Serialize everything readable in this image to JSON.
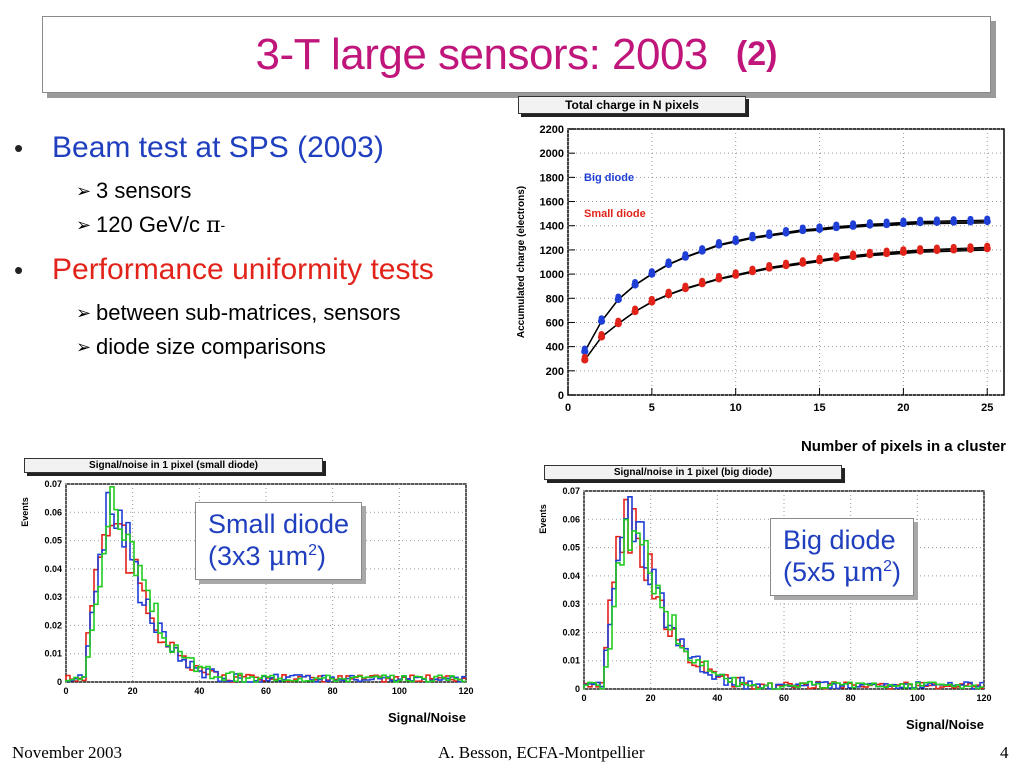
{
  "title": {
    "main": "3-T large sensors: 2003",
    "suffix": "(2)"
  },
  "bullets": [
    {
      "text": "Beam test at SPS (2003)",
      "color": "blue",
      "sub": [
        {
          "text": "3 sensors"
        },
        {
          "text": "120 GeV/c ",
          "sym": "π",
          "sup": "-"
        }
      ]
    },
    {
      "text": "Performance uniformity tests",
      "color": "red",
      "sub": [
        {
          "text": "between sub-matrices, sensors"
        },
        {
          "text": "diode size comparisons"
        }
      ]
    }
  ],
  "captions": {
    "small": {
      "line1": "Small diode",
      "line2_pre": "(3x3 ",
      "mu": "μ",
      "m": "m",
      "sup": "2",
      "close": ")"
    },
    "big": {
      "line1": "Big diode",
      "line2_pre": "(5x5 ",
      "mu": "μ",
      "m": "m",
      "sup": "2",
      "close": ")"
    }
  },
  "footer": {
    "left": "November 2003",
    "center": "A. Besson, ECFA-Montpellier",
    "page": "4"
  },
  "chart_data": [
    {
      "type": "line",
      "title": "Total charge in N pixels",
      "xlabel": "Number of pixels in a cluster",
      "ylabel": "Accumulated charge (electrons)",
      "xlim": [
        0,
        26
      ],
      "ylim": [
        0,
        2200
      ],
      "xticks": [
        0,
        5,
        10,
        15,
        20,
        25
      ],
      "yticks": [
        0,
        200,
        400,
        600,
        800,
        1000,
        1200,
        1400,
        1600,
        1800,
        2000,
        2200
      ],
      "legend": [
        "Big diode",
        "Small diode"
      ],
      "colors": {
        "big": "#1f3fd6",
        "small": "#e2231a"
      },
      "x": [
        1,
        2,
        3,
        4,
        5,
        6,
        7,
        8,
        9,
        10,
        11,
        12,
        13,
        14,
        15,
        16,
        17,
        18,
        19,
        20,
        21,
        22,
        23,
        24,
        25
      ],
      "series": [
        {
          "name": "Big diode",
          "color": "#1f3fd6",
          "values": [
            360,
            610,
            790,
            910,
            1000,
            1080,
            1140,
            1190,
            1240,
            1270,
            1300,
            1320,
            1340,
            1360,
            1370,
            1385,
            1395,
            1405,
            1410,
            1418,
            1425,
            1428,
            1430,
            1432,
            1435
          ]
        },
        {
          "name": "Small diode",
          "color": "#e2231a",
          "values": [
            290,
            480,
            590,
            690,
            770,
            830,
            880,
            920,
            960,
            990,
            1020,
            1050,
            1070,
            1090,
            1110,
            1130,
            1145,
            1160,
            1170,
            1180,
            1190,
            1195,
            1200,
            1205,
            1210
          ]
        }
      ]
    },
    {
      "type": "line",
      "title": "Signal/noise in 1 pixel (small diode)",
      "xlabel": "Signal/Noise",
      "ylabel": "Events",
      "xlim": [
        0,
        120
      ],
      "ylim": [
        0,
        0.07
      ],
      "xticks": [
        0,
        20,
        40,
        60,
        80,
        100,
        120
      ],
      "yticks": [
        "0",
        "0.01",
        "0.02",
        "0.03",
        "0.04",
        "0.05",
        "0.06",
        "0.07"
      ],
      "bin_width": 1.2,
      "peak": {
        "x": 14,
        "y": 0.066
      },
      "series": [
        {
          "name": "",
          "color": "#e2231a"
        },
        {
          "name": "",
          "color": "#1f3fd6"
        },
        {
          "name": "",
          "color": "#22cc22"
        }
      ]
    },
    {
      "type": "line",
      "title": "Signal/noise in 1 pixel (big diode)",
      "xlabel": "Signal/Noise",
      "ylabel": "Events",
      "xlim": [
        0,
        120
      ],
      "ylim": [
        0,
        0.07
      ],
      "xticks": [
        0,
        20,
        40,
        60,
        80,
        100,
        120
      ],
      "yticks": [
        "0",
        "0.01",
        "0.02",
        "0.03",
        "0.04",
        "0.05",
        "0.06",
        "0.07"
      ],
      "bin_width": 1.2,
      "peak": {
        "x": 14,
        "y": 0.064
      },
      "series": [
        {
          "name": "",
          "color": "#e2231a"
        },
        {
          "name": "",
          "color": "#1f3fd6"
        },
        {
          "name": "",
          "color": "#22cc22"
        }
      ]
    }
  ]
}
